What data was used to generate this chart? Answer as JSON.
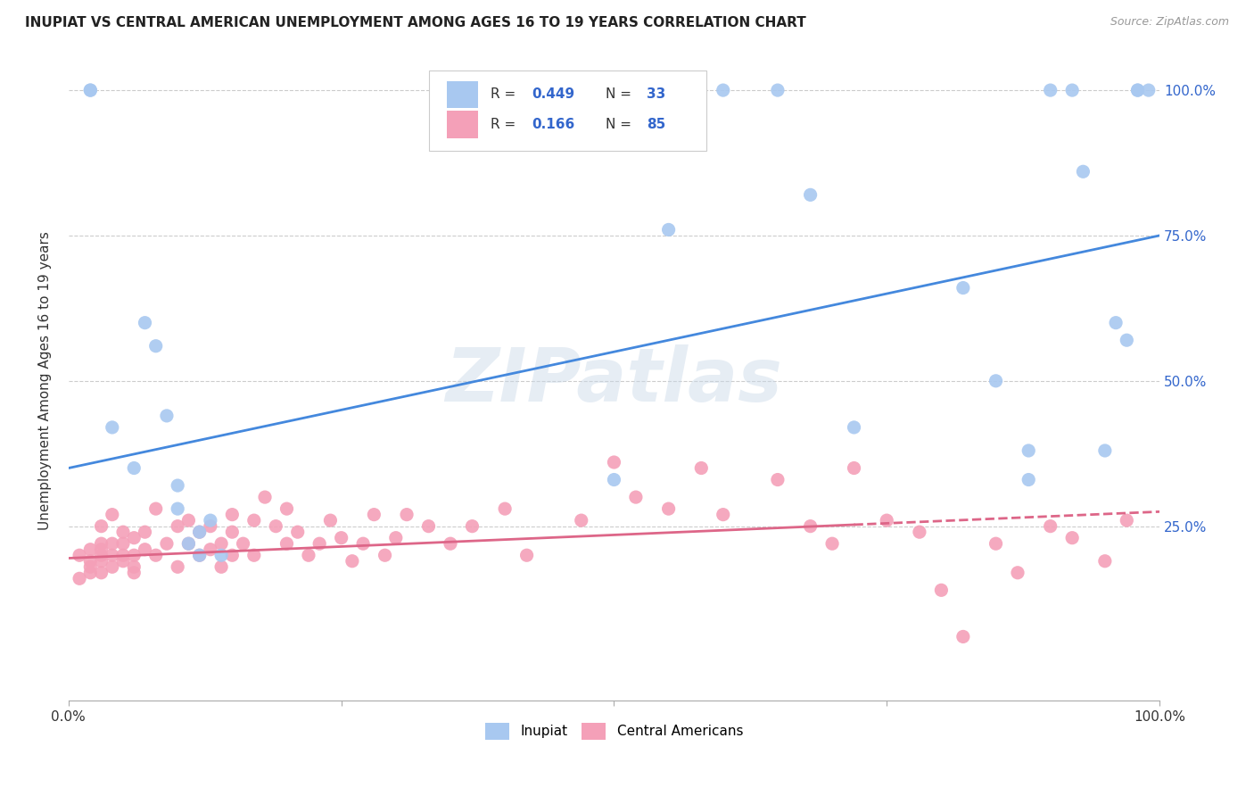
{
  "title": "INUPIAT VS CENTRAL AMERICAN UNEMPLOYMENT AMONG AGES 16 TO 19 YEARS CORRELATION CHART",
  "source": "Source: ZipAtlas.com",
  "ylabel": "Unemployment Among Ages 16 to 19 years",
  "xlim": [
    0,
    1.0
  ],
  "ylim": [
    -0.05,
    1.05
  ],
  "inupiat_R": 0.449,
  "inupiat_N": 33,
  "central_R": 0.166,
  "central_N": 85,
  "inupiat_color": "#a8c8f0",
  "central_color": "#f4a0b8",
  "inupiat_line_color": "#4488dd",
  "central_line_color": "#dd6688",
  "legend_r_color": "#3366cc",
  "watermark": "ZIPatlas",
  "inupiat_line_x0": 0.0,
  "inupiat_line_y0": 0.35,
  "inupiat_line_x1": 1.0,
  "inupiat_line_y1": 0.75,
  "central_line_x0": 0.0,
  "central_line_y0": 0.195,
  "central_line_x1": 1.0,
  "central_line_y1": 0.275,
  "central_line_solid_end": 0.72,
  "inupiat_x": [
    0.02,
    0.02,
    0.04,
    0.06,
    0.07,
    0.08,
    0.09,
    0.1,
    0.1,
    0.11,
    0.12,
    0.12,
    0.13,
    0.14,
    0.5,
    0.55,
    0.6,
    0.65,
    0.68,
    0.72,
    0.82,
    0.85,
    0.88,
    0.88,
    0.9,
    0.92,
    0.93,
    0.95,
    0.96,
    0.97,
    0.98,
    0.98,
    0.99
  ],
  "inupiat_y": [
    1.0,
    1.0,
    0.42,
    0.35,
    0.6,
    0.56,
    0.44,
    0.28,
    0.32,
    0.22,
    0.24,
    0.2,
    0.26,
    0.2,
    0.33,
    0.76,
    1.0,
    1.0,
    0.82,
    0.42,
    0.66,
    0.5,
    0.38,
    0.33,
    1.0,
    1.0,
    0.86,
    0.38,
    0.6,
    0.57,
    1.0,
    1.0,
    1.0
  ],
  "central_x": [
    0.01,
    0.01,
    0.02,
    0.02,
    0.02,
    0.02,
    0.03,
    0.03,
    0.03,
    0.03,
    0.03,
    0.03,
    0.04,
    0.04,
    0.04,
    0.04,
    0.05,
    0.05,
    0.05,
    0.05,
    0.06,
    0.06,
    0.06,
    0.06,
    0.07,
    0.07,
    0.08,
    0.08,
    0.09,
    0.1,
    0.1,
    0.11,
    0.11,
    0.12,
    0.12,
    0.13,
    0.13,
    0.14,
    0.14,
    0.15,
    0.15,
    0.15,
    0.16,
    0.17,
    0.17,
    0.18,
    0.19,
    0.2,
    0.2,
    0.21,
    0.22,
    0.23,
    0.24,
    0.25,
    0.26,
    0.27,
    0.28,
    0.29,
    0.3,
    0.31,
    0.33,
    0.35,
    0.37,
    0.4,
    0.42,
    0.47,
    0.5,
    0.52,
    0.55,
    0.58,
    0.6,
    0.65,
    0.68,
    0.7,
    0.72,
    0.75,
    0.78,
    0.8,
    0.82,
    0.85,
    0.87,
    0.9,
    0.92,
    0.95,
    0.97
  ],
  "central_y": [
    0.2,
    0.16,
    0.18,
    0.21,
    0.17,
    0.19,
    0.2,
    0.17,
    0.19,
    0.22,
    0.25,
    0.21,
    0.2,
    0.18,
    0.22,
    0.27,
    0.2,
    0.22,
    0.19,
    0.24,
    0.17,
    0.2,
    0.23,
    0.18,
    0.21,
    0.24,
    0.2,
    0.28,
    0.22,
    0.25,
    0.18,
    0.22,
    0.26,
    0.2,
    0.24,
    0.21,
    0.25,
    0.22,
    0.18,
    0.27,
    0.2,
    0.24,
    0.22,
    0.26,
    0.2,
    0.3,
    0.25,
    0.22,
    0.28,
    0.24,
    0.2,
    0.22,
    0.26,
    0.23,
    0.19,
    0.22,
    0.27,
    0.2,
    0.23,
    0.27,
    0.25,
    0.22,
    0.25,
    0.28,
    0.2,
    0.26,
    0.36,
    0.3,
    0.28,
    0.35,
    0.27,
    0.33,
    0.25,
    0.22,
    0.35,
    0.26,
    0.24,
    0.14,
    0.06,
    0.22,
    0.17,
    0.25,
    0.23,
    0.19,
    0.26
  ]
}
